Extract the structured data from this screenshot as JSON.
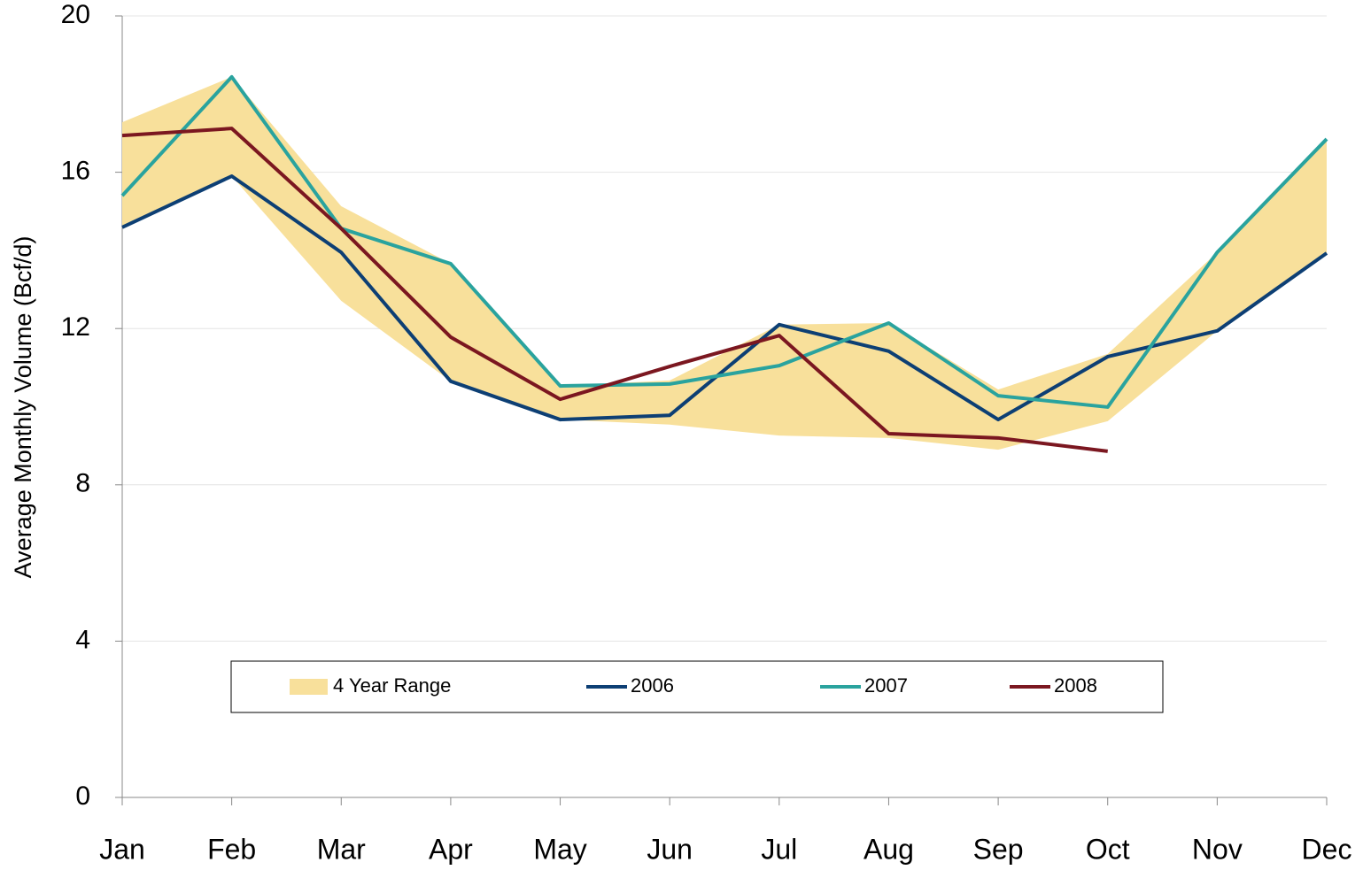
{
  "chart_data": {
    "type": "line",
    "y_label": "Average Monthly Volume (Bcf/d)",
    "categories": [
      "Jan",
      "Feb",
      "Mar",
      "Apr",
      "May",
      "Jun",
      "Jul",
      "Aug",
      "Sep",
      "Oct",
      "Nov",
      "Dec"
    ],
    "range": {
      "name": "4 Year Range",
      "color": "#f8e09b",
      "high": [
        17.28,
        18.44,
        15.13,
        13.66,
        10.53,
        10.67,
        12.1,
        12.14,
        10.44,
        11.35,
        13.95,
        16.85
      ],
      "low": [
        14.59,
        15.9,
        12.71,
        10.65,
        9.67,
        9.54,
        9.26,
        9.2,
        8.9,
        9.63,
        11.94,
        13.93
      ]
    },
    "series": [
      {
        "name": "2006",
        "color": "#0d3f74",
        "values": [
          14.59,
          15.9,
          13.95,
          10.65,
          9.67,
          9.78,
          12.1,
          11.42,
          9.67,
          11.28,
          11.94,
          13.93
        ]
      },
      {
        "name": "2007",
        "color": "#2aa39e",
        "values": [
          15.4,
          18.44,
          14.56,
          13.66,
          10.53,
          10.58,
          11.05,
          12.14,
          10.28,
          9.99,
          13.95,
          16.85
        ]
      },
      {
        "name": "2008",
        "color": "#7b1720",
        "values": [
          16.94,
          17.12,
          14.56,
          11.78,
          10.19,
          11.03,
          11.82,
          9.31,
          9.2,
          8.86,
          null,
          null
        ]
      }
    ],
    "ylim": [
      0,
      20
    ],
    "yticks": [
      0,
      4,
      8,
      12,
      16,
      20
    ],
    "grid": true
  }
}
